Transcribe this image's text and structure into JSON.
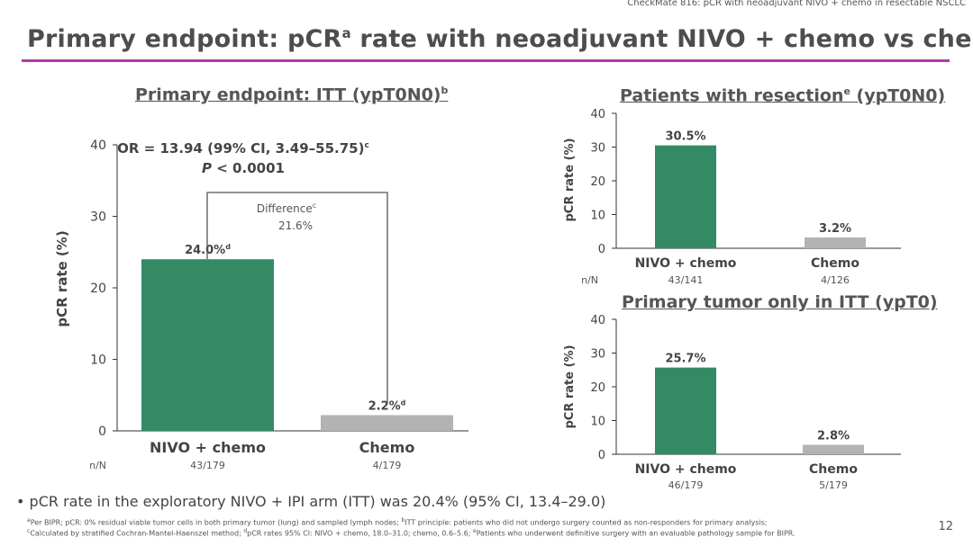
{
  "header": {
    "study": "CheckMate 816: pCR with neoadjuvant NIVO + chemo in resectable NSCLC",
    "title": "Primary endpoint: pCR",
    "title_sup": "a",
    "title_rest": " rate with neoadjuvant NIVO + chemo vs chemo"
  },
  "colors": {
    "nivo": "#348a65",
    "chemo": "#b3b3b3",
    "accent": "#b23aa8"
  },
  "chart_data": [
    {
      "id": "main",
      "type": "bar",
      "title": "Primary endpoint: ITT (ypT0N0)",
      "title_sup": "b",
      "ylabel": "pCR rate (%)",
      "ylim": [
        0,
        40
      ],
      "yticks": [
        "0",
        "10",
        "20",
        "30",
        "40"
      ],
      "categories": [
        "NIVO + chemo",
        "Chemo"
      ],
      "values": [
        24.0,
        2.2
      ],
      "data_labels": [
        "24.0%",
        "2.2%"
      ],
      "data_label_sups": [
        "d",
        "d"
      ],
      "nn_label": "n/N",
      "nn_values": [
        "43/179",
        "4/179"
      ],
      "odds_ratio": "OR = 13.94 (99% CI, 3.49–55.75)",
      "odds_ratio_sup": "c",
      "p_value_prefix": "P",
      "p_value": " < 0.0001",
      "difference_label": "Difference",
      "difference_sup": "c",
      "difference_value": "21.6%"
    },
    {
      "id": "resection",
      "type": "bar",
      "title": "Patients with resection",
      "title_sup": "e",
      "title_suffix": " (ypT0N0)",
      "ylabel": "pCR rate (%)",
      "ylim": [
        0,
        40
      ],
      "yticks": [
        "0",
        "10",
        "20",
        "30",
        "40"
      ],
      "categories": [
        "NIVO + chemo",
        "Chemo"
      ],
      "values": [
        30.5,
        3.2
      ],
      "data_labels": [
        "30.5%",
        "3.2%"
      ],
      "nn_label": "n/N",
      "nn_values": [
        "43/141",
        "4/126"
      ]
    },
    {
      "id": "tumor",
      "type": "bar",
      "title": "Primary tumor only in ITT (ypT0)",
      "ylabel": "pCR rate (%)",
      "ylim": [
        0,
        40
      ],
      "yticks": [
        "0",
        "10",
        "20",
        "30",
        "40"
      ],
      "categories": [
        "NIVO + chemo",
        "Chemo"
      ],
      "values": [
        25.7,
        2.8
      ],
      "data_labels": [
        "25.7%",
        "2.8%"
      ],
      "nn_values": [
        "46/179",
        "5/179"
      ]
    }
  ],
  "bullet": "pCR rate in the exploratory NIVO + IPI arm (ITT) was 20.4% (95% CI, 13.4–29.0)",
  "footnotes": {
    "line1": [
      {
        "sup": "a",
        "text": "Per BIPR; pCR: 0% residual viable tumor cells in both primary tumor (lung) and sampled lymph nodes; "
      },
      {
        "sup": "b",
        "text": "ITT principle: patients who did not undergo surgery counted as non-responders for primary analysis;"
      }
    ],
    "line2": [
      {
        "sup": "c",
        "text": "Calculated by stratified Cochran-Mantel-Haenszel method; "
      },
      {
        "sup": "d",
        "text": "pCR rates 95% CI: NIVO + chemo, 18.0–31.0; chemo, 0.6–5.6; "
      },
      {
        "sup": "e",
        "text": "Patients who underwent definitive surgery with an evaluable pathology sample for BIPR."
      }
    ]
  },
  "page_number": "12"
}
